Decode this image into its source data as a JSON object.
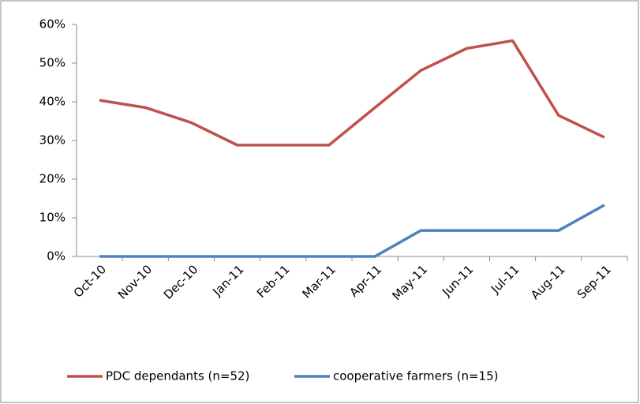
{
  "chart_data": {
    "type": "line",
    "categories": [
      "Oct-10",
      "Nov-10",
      "Dec-10",
      "Jan-11",
      "Feb-11",
      "Mar-11",
      "Apr-11",
      "May-11",
      "Jun-11",
      "Jul-11",
      "Aug-11",
      "Sep-11"
    ],
    "series": [
      {
        "name": "PDC dependants (n=52)",
        "color": "#c0504d",
        "values": [
          40.4,
          38.5,
          34.6,
          28.8,
          28.8,
          28.8,
          38.5,
          48.1,
          53.8,
          55.8,
          36.5,
          30.8
        ]
      },
      {
        "name": "cooperative farmers (n=15)",
        "color": "#4f81bd",
        "values": [
          0,
          0,
          0,
          0,
          0,
          0,
          0,
          6.7,
          6.7,
          6.7,
          6.7,
          13.3
        ]
      }
    ],
    "ylim": [
      0,
      60
    ],
    "yticks": [
      {
        "value": 0,
        "label": "0%"
      },
      {
        "value": 10,
        "label": "10%"
      },
      {
        "value": 20,
        "label": "20%"
      },
      {
        "value": 30,
        "label": "30%"
      },
      {
        "value": 40,
        "label": "40%"
      },
      {
        "value": 50,
        "label": "50%"
      },
      {
        "value": 60,
        "label": "60%"
      }
    ],
    "grid": false,
    "legend": "bottom"
  }
}
